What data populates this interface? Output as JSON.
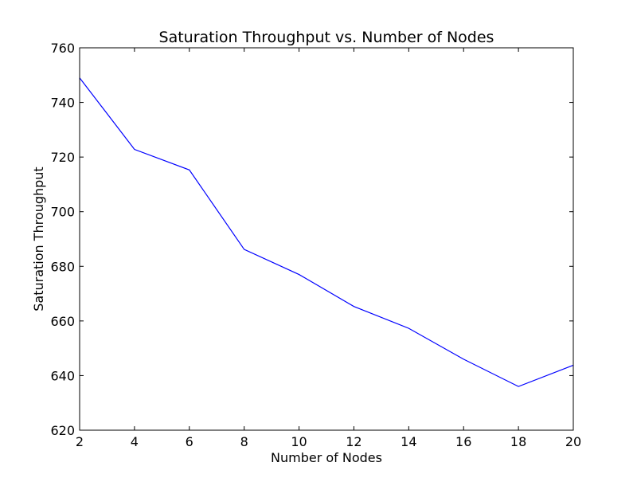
{
  "chart_data": {
    "type": "line",
    "title": "Saturation Throughput vs. Number of Nodes",
    "xlabel": "Number of Nodes",
    "ylabel": "Saturation Throughput",
    "xlim": [
      2,
      20
    ],
    "ylim": [
      620,
      760
    ],
    "xticks": [
      2,
      4,
      6,
      8,
      10,
      12,
      14,
      16,
      18,
      20
    ],
    "yticks": [
      620,
      640,
      660,
      680,
      700,
      720,
      740,
      760
    ],
    "grid": false,
    "series": [
      {
        "color": "#0000ff",
        "x": [
          2,
          4,
          6,
          8,
          10,
          12,
          14,
          16,
          18,
          20
        ],
        "y": [
          749,
          722.8,
          715.3,
          686.2,
          677.0,
          665.3,
          657.3,
          646.0,
          636.0,
          643.8
        ]
      }
    ]
  }
}
